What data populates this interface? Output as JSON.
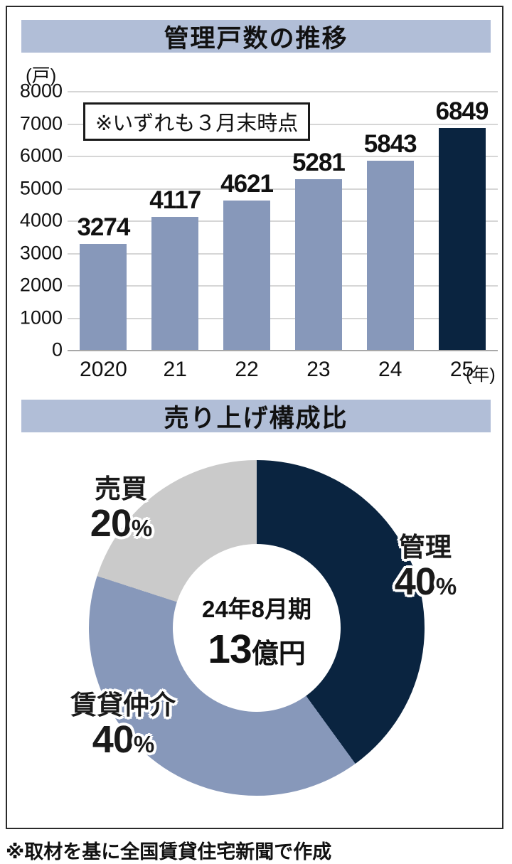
{
  "page": {
    "footer_note": "※取材を基に全国賃貸住宅新聞で作成"
  },
  "colors": {
    "banner_bg": "#b1bed7",
    "bar_blue": "#8798ba",
    "navy": "#0a2440",
    "pie_gray": "#cacaca",
    "gridline": "#d6d6d6"
  },
  "chart_data": [
    {
      "type": "bar",
      "title": "管理戸数の推移",
      "unit_label": "(戸)",
      "annotation": "※いずれも３月末時点",
      "categories": [
        "2020",
        "21",
        "22",
        "23",
        "24",
        "25"
      ],
      "values": [
        3274,
        4117,
        4621,
        5281,
        5843,
        6849
      ],
      "bar_colors": [
        "#8798ba",
        "#8798ba",
        "#8798ba",
        "#8798ba",
        "#8798ba",
        "#0a2440"
      ],
      "xlabel_unit": "(年)",
      "ylim": [
        0,
        8000
      ],
      "ytick_interval": 1000,
      "grid": true,
      "legend": "none"
    },
    {
      "type": "pie",
      "subtype": "donut",
      "title": "売り上げ構成比",
      "start_angle_deg": 0,
      "direction": "clockwise",
      "segments": [
        {
          "label": "管理",
          "value": 40,
          "unit": "%",
          "color": "#0a2440"
        },
        {
          "label": "賃貸仲介",
          "value": 40,
          "unit": "%",
          "color": "#8798ba"
        },
        {
          "label": "売買",
          "value": 20,
          "unit": "%",
          "color": "#cacaca"
        }
      ],
      "center": {
        "line1": "24年8月期",
        "value": "13",
        "value_unit": "億円"
      }
    }
  ]
}
